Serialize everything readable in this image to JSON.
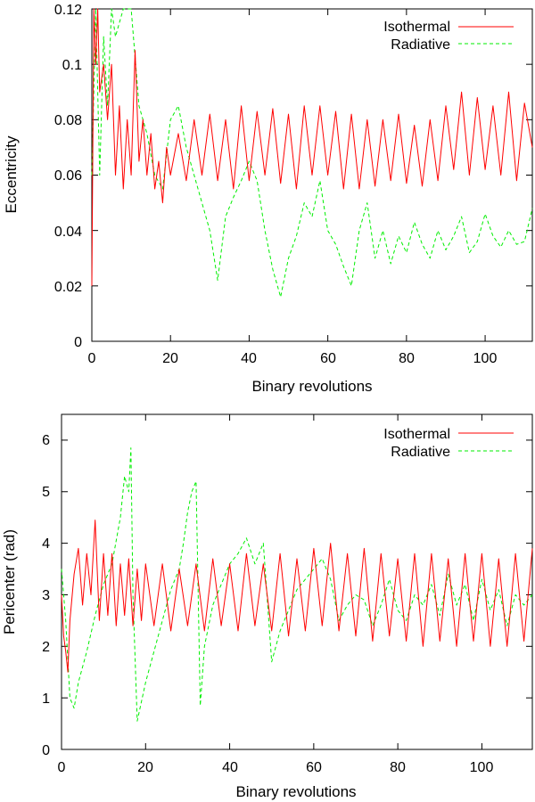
{
  "colors": {
    "isothermal": "#ff0000",
    "radiative": "#00ee00"
  },
  "chart_data": [
    {
      "type": "line",
      "id": "top",
      "xlabel": "Binary revolutions",
      "ylabel": "Eccentricity",
      "xlim": [
        0,
        112
      ],
      "ylim": [
        0,
        0.12
      ],
      "xticks": [
        0,
        20,
        40,
        60,
        80,
        100
      ],
      "yticks": [
        0,
        0.02,
        0.04,
        0.06,
        0.08,
        0.1,
        0.12
      ],
      "xtick_labels": [
        "0",
        "20",
        "40",
        "60",
        "80",
        "100"
      ],
      "ytick_labels": [
        "0",
        "0.02",
        "0.04",
        "0.06",
        "0.08",
        "0.1",
        "0.12"
      ],
      "legend": "top-right",
      "series": [
        {
          "name": "Isothermal",
          "color": "#ff0000",
          "dash": "solid",
          "x": [
            0,
            0.5,
            1,
            1.5,
            2,
            3,
            4,
            5,
            6,
            7,
            8,
            9,
            10,
            11,
            12,
            13,
            14,
            15,
            16,
            17,
            18,
            19,
            20,
            22,
            24,
            26,
            28,
            30,
            32,
            34,
            36,
            38,
            40,
            42,
            44,
            46,
            48,
            50,
            52,
            54,
            56,
            58,
            60,
            62,
            64,
            66,
            68,
            70,
            72,
            74,
            76,
            78,
            80,
            82,
            84,
            86,
            88,
            90,
            92,
            94,
            96,
            98,
            100,
            102,
            104,
            106,
            108,
            110,
            112
          ],
          "y": [
            0.02,
            0.12,
            0.1,
            0.12,
            0.09,
            0.1,
            0.08,
            0.1,
            0.06,
            0.085,
            0.055,
            0.08,
            0.06,
            0.105,
            0.065,
            0.08,
            0.06,
            0.075,
            0.055,
            0.065,
            0.05,
            0.07,
            0.06,
            0.075,
            0.058,
            0.08,
            0.06,
            0.082,
            0.058,
            0.08,
            0.055,
            0.085,
            0.058,
            0.083,
            0.06,
            0.084,
            0.057,
            0.082,
            0.055,
            0.085,
            0.06,
            0.085,
            0.06,
            0.083,
            0.055,
            0.082,
            0.055,
            0.08,
            0.056,
            0.08,
            0.058,
            0.082,
            0.057,
            0.078,
            0.056,
            0.08,
            0.058,
            0.085,
            0.062,
            0.09,
            0.06,
            0.088,
            0.062,
            0.085,
            0.06,
            0.09,
            0.058,
            0.086,
            0.07
          ]
        },
        {
          "name": "Radiative",
          "color": "#00ee00",
          "dash": "dashed",
          "x": [
            0,
            1,
            2,
            3,
            4,
            5,
            6,
            8,
            10,
            12,
            14,
            16,
            18,
            20,
            22,
            24,
            26,
            28,
            30,
            32,
            34,
            36,
            38,
            40,
            42,
            44,
            46,
            48,
            50,
            52,
            54,
            56,
            58,
            60,
            62,
            64,
            66,
            68,
            70,
            72,
            74,
            76,
            78,
            80,
            82,
            84,
            86,
            88,
            90,
            92,
            94,
            96,
            98,
            100,
            102,
            104,
            106,
            108,
            110,
            112
          ],
          "y": [
            0.06,
            0.12,
            0.06,
            0.11,
            0.085,
            0.12,
            0.11,
            0.12,
            0.12,
            0.085,
            0.075,
            0.06,
            0.055,
            0.08,
            0.085,
            0.07,
            0.06,
            0.05,
            0.04,
            0.022,
            0.045,
            0.052,
            0.058,
            0.065,
            0.058,
            0.04,
            0.026,
            0.016,
            0.03,
            0.038,
            0.05,
            0.045,
            0.058,
            0.04,
            0.035,
            0.027,
            0.02,
            0.04,
            0.05,
            0.03,
            0.04,
            0.028,
            0.038,
            0.032,
            0.043,
            0.035,
            0.03,
            0.04,
            0.033,
            0.038,
            0.045,
            0.032,
            0.036,
            0.046,
            0.038,
            0.034,
            0.04,
            0.035,
            0.036,
            0.048
          ]
        }
      ]
    },
    {
      "type": "line",
      "id": "bottom",
      "xlabel": "Binary revolutions",
      "ylabel": "Pericenter (rad)",
      "xlim": [
        0,
        112
      ],
      "ylim": [
        0,
        6.5
      ],
      "xticks": [
        0,
        20,
        40,
        60,
        80,
        100
      ],
      "yticks": [
        0,
        1,
        2,
        3,
        4,
        5,
        6
      ],
      "xtick_labels": [
        "0",
        "20",
        "40",
        "60",
        "80",
        "100"
      ],
      "ytick_labels": [
        "0",
        "1",
        "2",
        "3",
        "4",
        "5",
        "6"
      ],
      "legend": "top-right",
      "series": [
        {
          "name": "Isothermal",
          "color": "#ff0000",
          "dash": "solid",
          "x": [
            0,
            0.5,
            1,
            1.5,
            2,
            3,
            4,
            5,
            6,
            7,
            8,
            9,
            10,
            11,
            12,
            13,
            14,
            15,
            16,
            17,
            18,
            19,
            20,
            22,
            24,
            26,
            28,
            30,
            32,
            34,
            36,
            38,
            40,
            42,
            44,
            46,
            48,
            50,
            52,
            54,
            56,
            58,
            60,
            62,
            64,
            66,
            68,
            70,
            72,
            74,
            76,
            78,
            80,
            82,
            84,
            86,
            88,
            90,
            92,
            94,
            96,
            98,
            100,
            102,
            104,
            106,
            108,
            110,
            112
          ],
          "y": [
            3.0,
            2.2,
            1.9,
            1.5,
            2.5,
            3.4,
            3.9,
            2.8,
            3.8,
            3.0,
            4.45,
            2.5,
            3.8,
            2.6,
            3.8,
            2.4,
            3.6,
            2.6,
            3.7,
            2.4,
            3.5,
            2.5,
            3.6,
            2.4,
            3.6,
            2.3,
            3.5,
            2.4,
            3.6,
            2.3,
            3.7,
            2.4,
            3.6,
            2.3,
            3.8,
            2.4,
            3.6,
            2.3,
            3.8,
            2.2,
            3.7,
            2.3,
            3.9,
            2.4,
            4.0,
            2.3,
            3.8,
            2.2,
            3.9,
            2.1,
            3.8,
            2.2,
            3.7,
            2.1,
            3.8,
            2.0,
            3.8,
            2.1,
            3.7,
            2.0,
            3.8,
            2.1,
            3.8,
            2.0,
            3.7,
            2.0,
            3.8,
            2.1,
            3.9
          ]
        },
        {
          "name": "Radiative",
          "color": "#00ee00",
          "dash": "dashed",
          "x": [
            0,
            1,
            2,
            3,
            4,
            6,
            8,
            10,
            12,
            14,
            15,
            16,
            16.5,
            17,
            18,
            20,
            22,
            24,
            26,
            28,
            29,
            30,
            31,
            32,
            33,
            34,
            36,
            38,
            40,
            42,
            44,
            46,
            48,
            50,
            52,
            54,
            56,
            58,
            60,
            62,
            64,
            66,
            68,
            70,
            72,
            74,
            76,
            78,
            80,
            82,
            84,
            86,
            88,
            90,
            92,
            94,
            96,
            98,
            100,
            102,
            104,
            106,
            108,
            110,
            112
          ],
          "y": [
            3.5,
            2.5,
            1.0,
            0.8,
            1.3,
            1.9,
            2.6,
            3.2,
            3.6,
            4.5,
            5.3,
            5.0,
            5.85,
            3.0,
            0.55,
            1.3,
            1.9,
            2.5,
            3.1,
            3.5,
            4.0,
            4.6,
            5.0,
            5.2,
            0.85,
            2.0,
            2.8,
            3.2,
            3.6,
            3.8,
            4.1,
            3.6,
            4.0,
            1.7,
            2.3,
            2.7,
            3.1,
            3.3,
            3.5,
            3.7,
            3.3,
            2.5,
            2.8,
            3.0,
            2.9,
            2.4,
            2.8,
            3.3,
            2.7,
            2.5,
            3.0,
            2.8,
            3.2,
            2.6,
            3.4,
            2.8,
            3.2,
            2.5,
            3.3,
            2.7,
            3.1,
            2.4,
            3.0,
            2.8,
            3.0
          ]
        }
      ]
    }
  ]
}
